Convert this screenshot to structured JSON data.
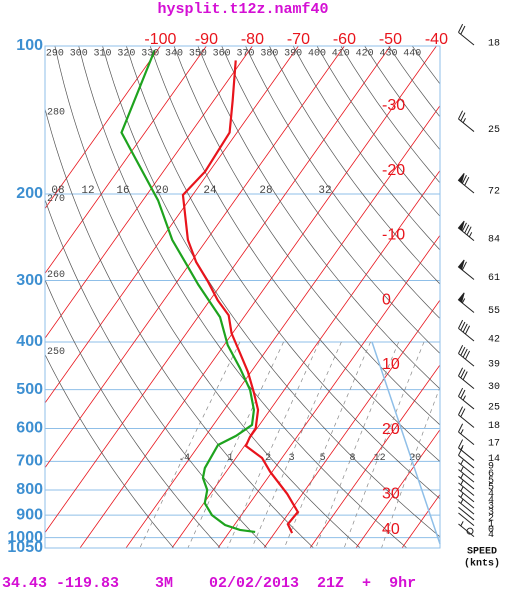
{
  "chart_data": {
    "type": "skew-t",
    "title": "hysplit.t12z.namf40",
    "footer": "34.43 -119.83    3M    02/02/2013  21Z  +  9hr",
    "log_y": true,
    "ylim": [
      100,
      1050
    ],
    "yticks": [
      100,
      200,
      300,
      400,
      500,
      600,
      700,
      800,
      900,
      1000,
      1050
    ],
    "isotherms": [
      -100,
      -90,
      -80,
      -70,
      -60,
      -50,
      -40,
      -30,
      -20,
      -10,
      0,
      10,
      20,
      30,
      40
    ],
    "dry_adiabats": [
      250,
      260,
      270,
      280,
      290,
      300,
      310,
      320,
      330,
      340,
      350,
      360,
      370,
      380,
      390,
      400,
      410,
      420,
      430,
      440
    ],
    "mixing_ratios": [
      {
        "value": 0.4,
        "label": ".4"
      },
      1,
      2,
      3,
      5,
      8,
      12,
      20
    ],
    "upper_labels": [
      "08",
      "12",
      "16",
      "20",
      "24",
      "28",
      "32"
    ],
    "series": [
      {
        "color": "#e8141c",
        "pressure": [
          979,
          939,
          887,
          815,
          735,
          689,
          651,
          624,
          599,
          550,
          508,
          460,
          419,
          384,
          353,
          329,
          302,
          275,
          248,
          201,
          180,
          150,
          129,
          107
        ],
        "values": [
          3.8,
          1.5,
          1.8,
          -3.3,
          -10.4,
          -14.3,
          -19.7,
          -20.2,
          -20.3,
          -22.6,
          -26.1,
          -30.7,
          -35.6,
          -40.2,
          -43.6,
          -48.3,
          -53.2,
          -58.9,
          -64.1,
          -72.1,
          -70.9,
          -71.6,
          -75.9,
          -81.4
        ]
      },
      {
        "color": "#1ea31e",
        "pressure": [
          974,
          965,
          943,
          900,
          851,
          800,
          756,
          722,
          648,
          621,
          590,
          550,
          501,
          452,
          406,
          356,
          344,
          306,
          275,
          248,
          206,
          150,
          102
        ],
        "values": [
          -4.4,
          -8.0,
          -12.0,
          -16.4,
          -19.8,
          -21.3,
          -24.1,
          -25.2,
          -25.9,
          -23.4,
          -21.6,
          -23.5,
          -27.4,
          -33.0,
          -39.2,
          -45.2,
          -47.4,
          -54.9,
          -61.3,
          -67.5,
          -76.7,
          -95.1,
          -100.6
        ]
      }
    ],
    "wind": {
      "title": "SPEED",
      "unit": "(knts)",
      "pressure": [
        100,
        150,
        200,
        250,
        300,
        350,
        400,
        450,
        500,
        550,
        600,
        650,
        700,
        725,
        750,
        775,
        800,
        825,
        850,
        875,
        900,
        925,
        950,
        975,
        1000
      ],
      "values": [
        18,
        25,
        72,
        84,
        61,
        55,
        42,
        39,
        30,
        25,
        18,
        17,
        14,
        9,
        6,
        5,
        5,
        4,
        4,
        3,
        3,
        2,
        1,
        0,
        4
      ]
    }
  }
}
